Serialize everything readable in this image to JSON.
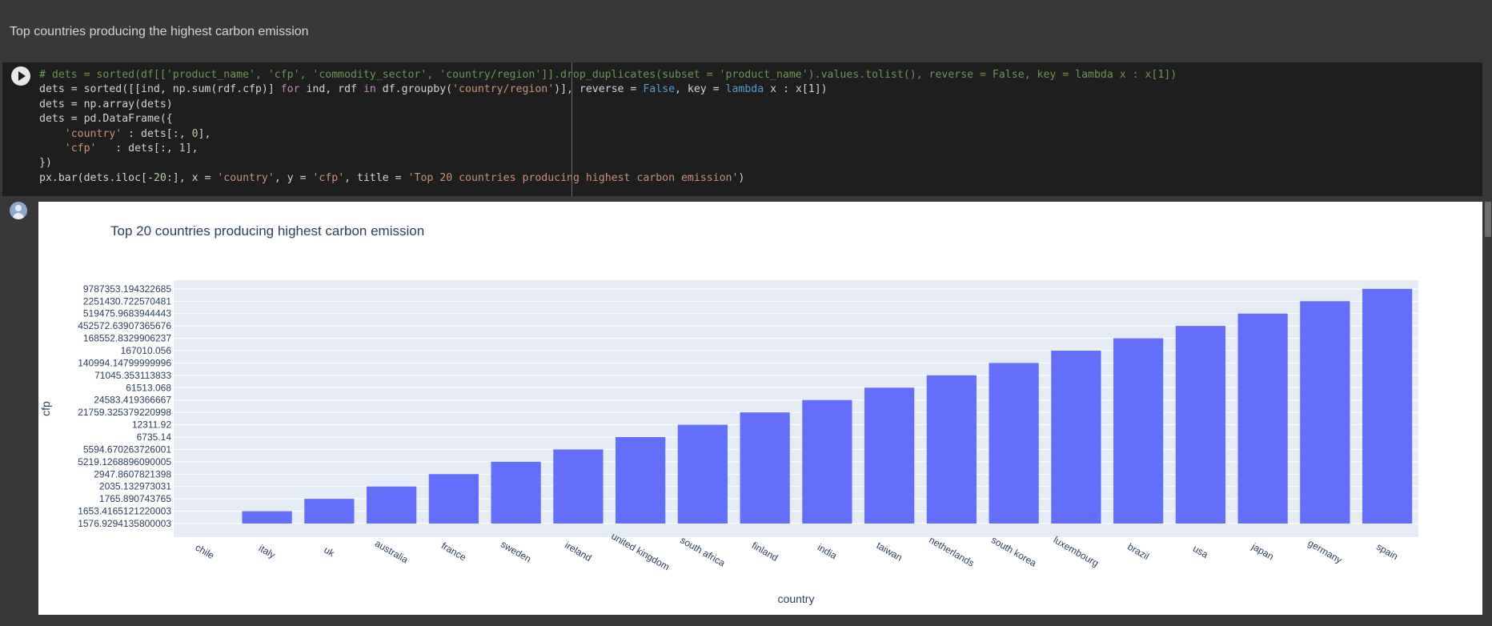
{
  "markdown_cell": {
    "text": "Top countries producing the highest carbon emission"
  },
  "code_cell": {
    "lines": [
      [
        [
          "cm",
          "# dets = sorted(df[['product_name', 'cfp', 'commodity_sector', 'country/region']].drop_duplicates(subset = 'product_name').values.tolist(), reverse = False, key = lambda x : x[1])"
        ]
      ],
      [
        [
          "",
          "dets = sorted([[ind, np.sum(rdf.cfp)] "
        ],
        [
          "kw",
          "for"
        ],
        [
          "",
          " ind, rdf "
        ],
        [
          "kw",
          "in"
        ],
        [
          "",
          " df.groupby("
        ],
        [
          "st",
          "'country/region'"
        ],
        [
          "",
          ")], reverse = "
        ],
        [
          "bl",
          "False"
        ],
        [
          "",
          ", key = "
        ],
        [
          "bl",
          "lambda"
        ],
        [
          "",
          " x : x[1])"
        ]
      ],
      [
        [
          "",
          "dets = np.array(dets)"
        ]
      ],
      [
        [
          "",
          "dets = pd.DataFrame({"
        ]
      ],
      [
        [
          "",
          "    "
        ],
        [
          "st",
          "'country'"
        ],
        [
          "",
          " : dets[:, "
        ],
        [
          "nm",
          "0"
        ],
        [
          "",
          "],"
        ]
      ],
      [
        [
          "",
          "    "
        ],
        [
          "st",
          "'cfp'"
        ],
        [
          "",
          "   : dets[:, "
        ],
        [
          "nm",
          "1"
        ],
        [
          "",
          "],"
        ]
      ],
      [
        [
          "",
          "})"
        ]
      ],
      [
        [
          "",
          "px.bar(dets.iloc[-"
        ],
        [
          "nm",
          "20"
        ],
        [
          "",
          ":], x = "
        ],
        [
          "st",
          "'country'"
        ],
        [
          "",
          ", y = "
        ],
        [
          "st",
          "'cfp'"
        ],
        [
          "",
          ", title = "
        ],
        [
          "st",
          "'Top 20 countries producing highest carbon emission'"
        ],
        [
          "",
          ")"
        ]
      ]
    ]
  },
  "chart_data": {
    "type": "bar",
    "title": "Top 20 countries producing highest carbon emission",
    "xlabel": "country",
    "ylabel": "cfp",
    "categories": [
      "chile",
      "italy",
      "uk",
      "australia",
      "france",
      "sweden",
      "ireland",
      "united kingdom",
      "south africa",
      "finland",
      "india",
      "taiwan",
      "netherlands",
      "south korea",
      "luxembourg",
      "brazil",
      "usa",
      "japan",
      "germany",
      "spain"
    ],
    "y_tick_labels": [
      "1576.9294135800003",
      "1653.4165121220003",
      "1765.890743765",
      "2035.132973031",
      "2947.8607821398",
      "5219.1268896090005",
      "5594.670263726001",
      "6735.14",
      "12311.92",
      "21759.325379220998",
      "24583.419366667",
      "61513.068",
      "71045.353113833",
      "140994.14799999996",
      "167010.056",
      "168552.8329906237",
      "452572.63907365676",
      "519475.9683944443",
      "2251430.722570481",
      "9787353.194322685"
    ],
    "values": [
      "1576.9294135800003",
      "1653.4165121220003",
      "1765.890743765",
      "2035.132973031",
      "2947.8607821398",
      "5219.1268896090005",
      "5594.670263726001",
      "6735.14",
      "12311.92",
      "21759.325379220998",
      "24583.419366667",
      "61513.068",
      "71045.353113833",
      "140994.14799999996",
      "167010.056",
      "168552.8329906237",
      "452572.63907365676",
      "519475.9683944443",
      "2251430.722570481",
      "9787353.194322685"
    ],
    "y_axis": "categorical",
    "grid": true,
    "bar_color": "#636efa",
    "plot_bg": "#e5ecf6"
  }
}
